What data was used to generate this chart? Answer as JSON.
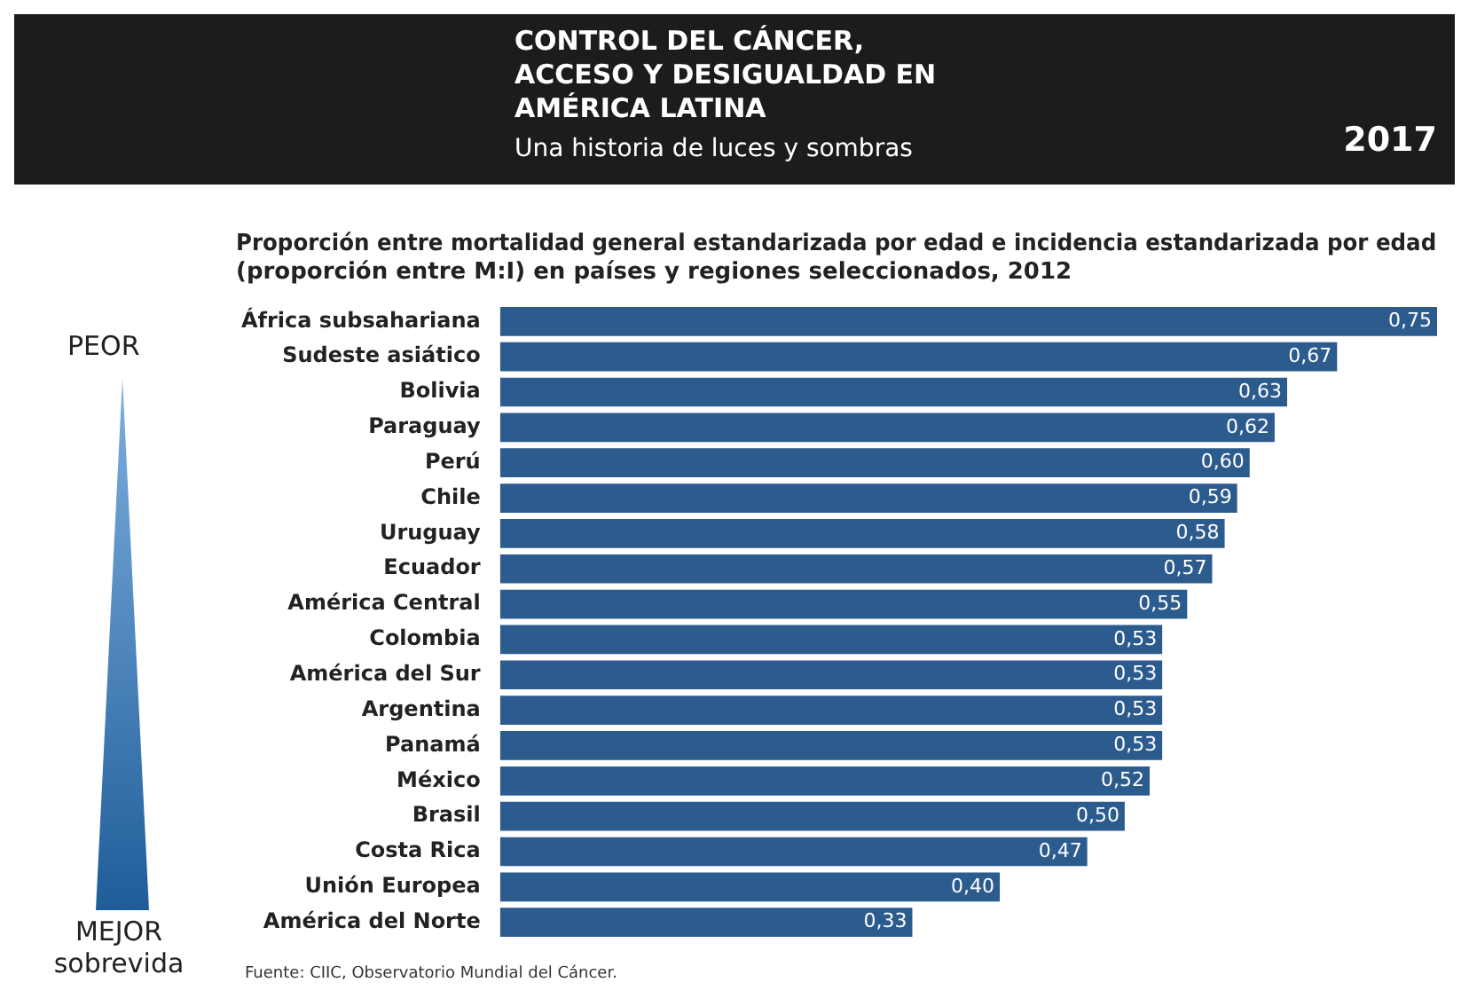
{
  "chart_data": {
    "type": "bar",
    "orientation": "horizontal",
    "title": "Proporción entre mortalidad general estandarizada por edad e incidencia estandarizada por edad (proporción entre M:I) en países y regiones seleccionados, 2012",
    "categories": [
      "África subsahariana",
      "Sudeste asiático",
      "Bolivia",
      "Paraguay",
      "Perú",
      "Chile",
      "Uruguay",
      "Ecuador",
      "América Central",
      "Colombia",
      "América del Sur",
      "Argentina",
      "Panamá",
      "México",
      "Brasil",
      "Costa Rica",
      "Unión Europea",
      "América del Norte"
    ],
    "values": [
      0.75,
      0.67,
      0.63,
      0.62,
      0.6,
      0.59,
      0.58,
      0.57,
      0.55,
      0.53,
      0.53,
      0.53,
      0.53,
      0.52,
      0.5,
      0.47,
      0.4,
      0.33
    ],
    "value_labels": [
      "0,75",
      "0,67",
      "0,63",
      "0,62",
      "0,60",
      "0,59",
      "0,58",
      "0,57",
      "0,55",
      "0,53",
      "0,53",
      "0,53",
      "0,53",
      "0,52",
      "0,50",
      "0,47",
      "0,40",
      "0,33"
    ],
    "color": "#2c5b8e",
    "annotations": [
      "CONTROL DEL CÁNCER, ACCESO Y DESIGUALDAD EN AMÉRICA LATINA",
      "Una historia de luces y sombras",
      "2017",
      "PEOR",
      "MEJOR sobrevida",
      "Fuente: CIIC, Observatorio Mundial del Cáncer."
    ]
  }
}
